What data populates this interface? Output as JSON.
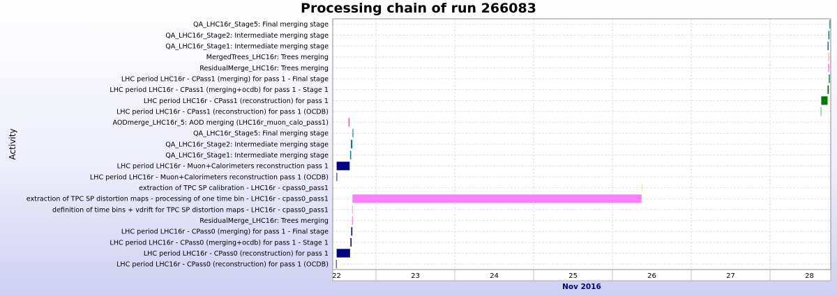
{
  "chart_data": {
    "type": "gantt",
    "title": "Processing chain of run 266083",
    "ylabel": "Activity",
    "xlabel": "Nov 2016",
    "xlim": [
      21.95,
      28.27
    ],
    "x_ticks": [
      {
        "value": 22,
        "label": "22"
      },
      {
        "value": 23,
        "label": "23"
      },
      {
        "value": 24,
        "label": "24"
      },
      {
        "value": 25,
        "label": "25"
      },
      {
        "value": 26,
        "label": "26"
      },
      {
        "value": 27,
        "label": "27"
      },
      {
        "value": 28,
        "label": "28"
      }
    ],
    "grid": true,
    "activities": [
      {
        "label": "QA_LHC16r_Stage5: Final merging stage",
        "start": 28.25,
        "end": 28.255,
        "color": "#5aa0a0"
      },
      {
        "label": "QA_LHC16r_Stage2: Intermediate merging stage",
        "start": 28.24,
        "end": 28.248,
        "color": "#1a7a80"
      },
      {
        "label": "QA_LHC16r_Stage1: Intermediate merging stage",
        "start": 28.23,
        "end": 28.24,
        "color": "#1a7a80"
      },
      {
        "label": "MergedTrees_LHC16r: Trees merging",
        "start": 28.238,
        "end": 28.245,
        "color": "#f0c0b0"
      },
      {
        "label": "ResidualMerge_LHC16r: Trees merging",
        "start": 28.237,
        "end": 28.244,
        "color": "#ff80ff"
      },
      {
        "label": "LHC period LHC16r - CPass1 (merging) for pass 1 - Final stage",
        "start": 28.245,
        "end": 28.25,
        "color": "#2e8b57"
      },
      {
        "label": "LHC period LHC16r - CPass1 (merging+ocdb) for pass 1 - Stage 1",
        "start": 28.23,
        "end": 28.245,
        "color": "#006400"
      },
      {
        "label": "LHC period LHC16r - CPass1 (reconstruction) for pass 1",
        "start": 28.15,
        "end": 28.23,
        "color": "#007a00"
      },
      {
        "label": "LHC period LHC16r - CPass1 (reconstruction) for pass 1 (OCDB)",
        "start": 28.14,
        "end": 28.15,
        "color": "#90d090"
      },
      {
        "label": "AODmerge_LHC16r_5: AOD merging (LHC16r_muon_calo_pass1)",
        "start": 22.15,
        "end": 22.165,
        "color": "#cc66cc"
      },
      {
        "label": "QA_LHC16r_Stage5: Final merging stage",
        "start": 22.2,
        "end": 22.21,
        "color": "#5aa0a0"
      },
      {
        "label": "QA_LHC16r_Stage2: Intermediate merging stage",
        "start": 22.18,
        "end": 22.2,
        "color": "#1a7a80"
      },
      {
        "label": "QA_LHC16r_Stage1: Intermediate merging stage",
        "start": 22.17,
        "end": 22.18,
        "color": "#1a7a80"
      },
      {
        "label": "LHC period LHC16r - Muon+Calorimeters reconstruction pass 1",
        "start": 22.0,
        "end": 22.165,
        "color": "#000080"
      },
      {
        "label": "LHC period LHC16r - Muon+Calorimeters reconstruction pass 1 (OCDB)",
        "start": 21.995,
        "end": 22.0,
        "color": "#6a6ab0"
      },
      {
        "label": "extraction of TPC SP calibration - LHC16r - cpass0_pass1",
        "start": 25.87,
        "end": 25.88,
        "color": "#f5e6c8"
      },
      {
        "label": "extraction of TPC SP distortion maps - processing of one time bin - LHC16r - cpass0_pass1",
        "start": 22.2,
        "end": 25.87,
        "color": "#ff80ff"
      },
      {
        "label": "definition of time bins + vdrift for TPC SP distortion maps - LHC16r - cpass0_pass1",
        "start": 22.195,
        "end": 22.2,
        "color": "#f0c0b0"
      },
      {
        "label": "ResidualMerge_LHC16r: Trees merging",
        "start": 22.195,
        "end": 22.2,
        "color": "#ff80ff"
      },
      {
        "label": "LHC period LHC16r - CPass0 (merging) for pass 1 - Final stage",
        "start": 22.185,
        "end": 22.195,
        "color": "#000080"
      },
      {
        "label": "LHC period LHC16r - CPass0 (merging+ocdb) for pass 1 - Stage 1",
        "start": 22.175,
        "end": 22.185,
        "color": "#000080"
      },
      {
        "label": "LHC period LHC16r - CPass0 (reconstruction) for pass 1",
        "start": 22.0,
        "end": 22.17,
        "color": "#000080"
      },
      {
        "label": "LHC period LHC16r - CPass0 (reconstruction) for pass 1 (OCDB)",
        "start": 21.99,
        "end": 21.997,
        "color": "#6a6ab0"
      }
    ]
  }
}
